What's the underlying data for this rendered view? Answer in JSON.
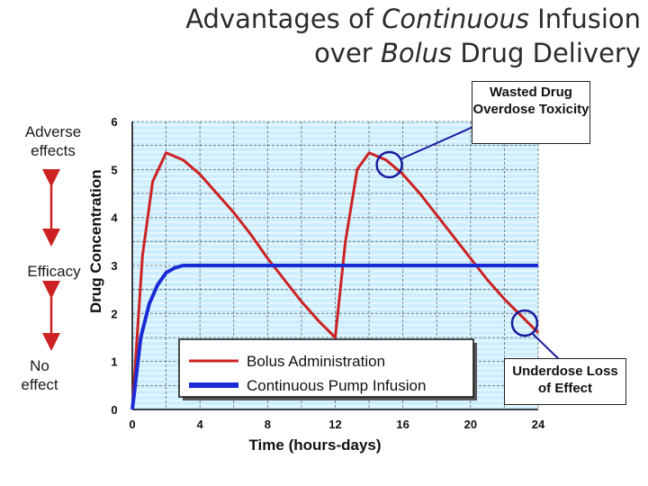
{
  "title": {
    "line1_pre": "Advantages of ",
    "line1_em": "Continuous",
    "line1_post": " Infusion",
    "line2_pre": "over ",
    "line2_em": "Bolus",
    "line2_post": " Drug Delivery"
  },
  "side_labels": {
    "adverse": "Adverse effects",
    "efficacy": "Efficacy",
    "no_effect": "No effect"
  },
  "annotations": {
    "overdose": "Wasted Drug Overdose Toxicity",
    "underdose": "Underdose Loss of Effect"
  },
  "colors": {
    "bolus": "#cc2222",
    "continuous": "#1a2bd6",
    "plot_background": "#cceeff",
    "annotation_circle": "#1a1aa0"
  },
  "chart_data": {
    "type": "line",
    "xlabel": "Time (hours-days)",
    "ylabel": "Drug Concentration",
    "x_ticks": [
      0,
      4,
      8,
      12,
      16,
      20,
      24
    ],
    "y_ticks": [
      0,
      1,
      2,
      3,
      4,
      5,
      6
    ],
    "xlim": [
      0,
      24
    ],
    "ylim": [
      0,
      6
    ],
    "grid": true,
    "legend_placement": "bottom-center",
    "series": [
      {
        "name": "Bolus Administration",
        "x": [
          0,
          0.6,
          1.2,
          2,
          3,
          4,
          5,
          6,
          7,
          8,
          9,
          10,
          11,
          12,
          12.6,
          13.3,
          14,
          15,
          16,
          17,
          18,
          19,
          20,
          21,
          22,
          23,
          24
        ],
        "y": [
          0,
          3.2,
          4.75,
          5.35,
          5.2,
          4.9,
          4.5,
          4.1,
          3.65,
          3.15,
          2.7,
          2.25,
          1.85,
          1.5,
          3.5,
          5.0,
          5.35,
          5.2,
          4.9,
          4.5,
          4.05,
          3.6,
          3.15,
          2.7,
          2.3,
          1.95,
          1.6
        ]
      },
      {
        "name": "Continuous Pump Infusion",
        "x": [
          0,
          0.5,
          1,
          1.5,
          2,
          2.5,
          3,
          4,
          8,
          12,
          16,
          20,
          24
        ],
        "y": [
          0,
          1.5,
          2.2,
          2.6,
          2.85,
          2.95,
          3.0,
          3.0,
          3.0,
          3.0,
          3.0,
          3.0,
          3.0
        ]
      }
    ]
  }
}
